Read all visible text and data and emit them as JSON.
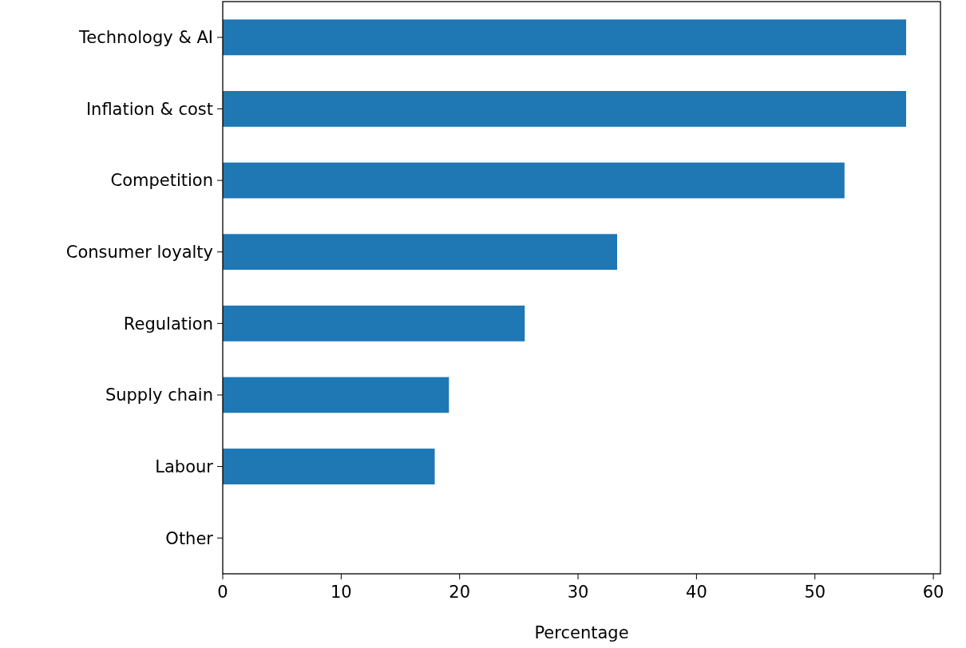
{
  "chart_data": {
    "type": "bar",
    "orientation": "horizontal",
    "categories": [
      "Technology & AI",
      "Inflation & cost",
      "Competition",
      "Consumer loyalty",
      "Regulation",
      "Supply chain",
      "Labour",
      "Other"
    ],
    "values": [
      57.7,
      57.7,
      52.5,
      33.3,
      25.5,
      19.1,
      17.9,
      0
    ],
    "color": "#1f77b4",
    "xlabel": "Percentage",
    "xlim": [
      0,
      60.6
    ],
    "xticks": [
      0,
      10,
      20,
      30,
      40,
      50,
      60
    ]
  }
}
